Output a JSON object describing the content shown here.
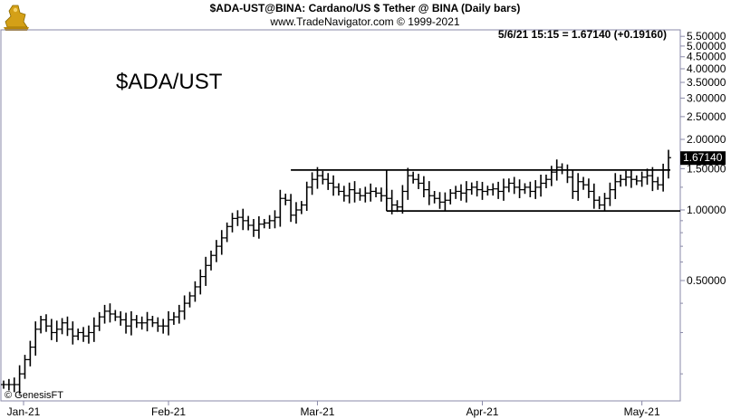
{
  "header": {
    "line1": "$ADA-UST@BINA:  Cardano/US $ Tether @ BINA  (Daily bars)",
    "line2": "www.TradeNavigator.com © 1999-2021",
    "readout": "5/6/21 15:15 = 1.67140 (+0.19160)"
  },
  "watermark": "$ADA/UST",
  "footer_credit": "© GenesisFT",
  "logo_icon": "trade-navigator-logo-icon",
  "colors": {
    "bars": "#000000",
    "frame": "#8a8aa8",
    "badge_bg": "#000000",
    "badge_text": "#ffffff",
    "logo": "#d4a017"
  },
  "chart_data": {
    "type": "ohlc-bar",
    "y_scale": "log",
    "ylim": [
      0.17,
      6.0
    ],
    "x_range": [
      "2021-01-01",
      "2021-05-06"
    ],
    "x_tick_labels": [
      {
        "label": "Jan-21",
        "date": "2021-01-01"
      },
      {
        "label": "Feb-21",
        "date": "2021-02-01"
      },
      {
        "label": "Mar-21",
        "date": "2021-03-01"
      },
      {
        "label": "Apr-21",
        "date": "2021-04-01"
      },
      {
        "label": "May-21",
        "date": "2021-05-01"
      }
    ],
    "y_tick_labels": [
      {
        "label": "5.50000",
        "value": 5.5
      },
      {
        "label": "5.00000",
        "value": 5.0
      },
      {
        "label": "4.50000",
        "value": 4.5
      },
      {
        "label": "4.00000",
        "value": 4.0
      },
      {
        "label": "3.50000",
        "value": 3.5
      },
      {
        "label": "3.00000",
        "value": 3.0
      },
      {
        "label": "2.50000",
        "value": 2.5
      },
      {
        "label": "2.00000",
        "value": 2.0
      },
      {
        "label": "1.50000",
        "value": 1.5
      },
      {
        "label": "1.00000",
        "value": 1.0
      },
      {
        "label": "0.50000",
        "value": 0.5
      }
    ],
    "last_price_label": "1.67140",
    "last_price": 1.6714,
    "levels": [
      {
        "name": "resistance",
        "value": 1.48,
        "from": "2021-02-24",
        "to": "2021-05-06"
      },
      {
        "name": "support",
        "value": 0.99,
        "from": "2021-03-14",
        "to": "2021-05-06"
      }
    ],
    "range_box_left": {
      "date": "2021-03-14",
      "low": 0.99,
      "high": 1.48
    },
    "close_series": [
      0.18,
      0.18,
      0.18,
      0.2,
      0.23,
      0.26,
      0.31,
      0.34,
      0.32,
      0.3,
      0.31,
      0.33,
      0.31,
      0.29,
      0.3,
      0.29,
      0.3,
      0.32,
      0.35,
      0.37,
      0.36,
      0.35,
      0.34,
      0.32,
      0.34,
      0.33,
      0.33,
      0.34,
      0.33,
      0.32,
      0.32,
      0.34,
      0.35,
      0.37,
      0.4,
      0.43,
      0.47,
      0.52,
      0.58,
      0.64,
      0.7,
      0.76,
      0.85,
      0.92,
      0.93,
      0.9,
      0.86,
      0.82,
      0.87,
      0.88,
      0.9,
      0.93,
      1.12,
      1.1,
      0.95,
      1.0,
      1.05,
      1.25,
      1.35,
      1.4,
      1.35,
      1.3,
      1.25,
      1.2,
      1.15,
      1.22,
      1.18,
      1.15,
      1.18,
      1.2,
      1.18,
      1.15,
      1.12,
      1.05,
      1.03,
      1.2,
      1.4,
      1.35,
      1.3,
      1.22,
      1.15,
      1.12,
      1.08,
      1.1,
      1.18,
      1.2,
      1.18,
      1.22,
      1.25,
      1.22,
      1.2,
      1.22,
      1.23,
      1.2,
      1.25,
      1.3,
      1.25,
      1.22,
      1.25,
      1.2,
      1.25,
      1.3,
      1.35,
      1.45,
      1.52,
      1.48,
      1.38,
      1.2,
      1.32,
      1.28,
      1.2,
      1.1,
      1.05,
      1.12,
      1.22,
      1.32,
      1.35,
      1.38,
      1.35,
      1.33,
      1.38,
      1.4,
      1.32,
      1.28,
      1.48,
      1.6714
    ]
  }
}
